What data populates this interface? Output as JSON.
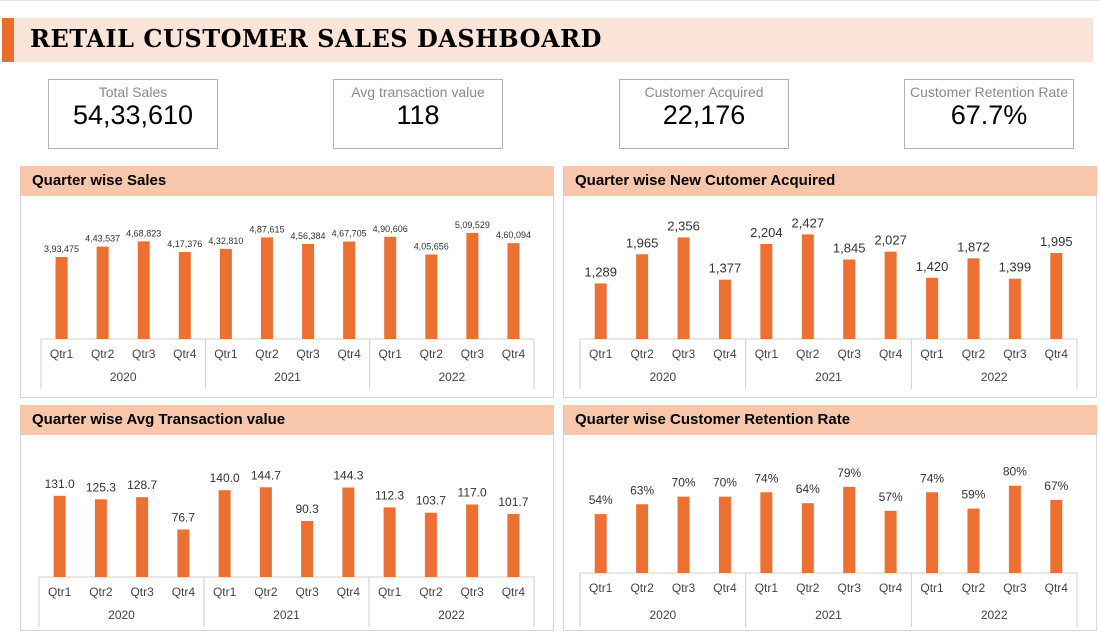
{
  "dashboard": {
    "title": "RETAIL CUSTOMER SALES DASHBOARD"
  },
  "kpis": [
    {
      "label": "Total Sales",
      "value": "54,33,610"
    },
    {
      "label": "Avg transaction value",
      "value": "118"
    },
    {
      "label": "Customer Acquired",
      "value": "22,176"
    },
    {
      "label": "Customer Retention Rate",
      "value": "67.7%"
    }
  ],
  "colors": {
    "bar": "#ed7033",
    "header_bg": "#fbe4d8",
    "panel_title_bg": "#f8c6aa",
    "accent": "#e86d2c"
  },
  "chart_data": [
    {
      "type": "bar",
      "title": "Quarter wise Sales",
      "categories": [
        "Qtr1",
        "Qtr2",
        "Qtr3",
        "Qtr4",
        "Qtr1",
        "Qtr2",
        "Qtr3",
        "Qtr4",
        "Qtr1",
        "Qtr2",
        "Qtr3",
        "Qtr4"
      ],
      "groups": [
        "2020",
        "2021",
        "2022"
      ],
      "values": [
        393475,
        443537,
        468823,
        417376,
        432810,
        487615,
        456384,
        467705,
        490606,
        405656,
        509529,
        460094
      ],
      "data_labels": [
        "3,93,475",
        "4,43,537",
        "4,68,823",
        "4,17,376",
        "4,32,810",
        "4,87,615",
        "4,56,384",
        "4,67,705",
        "4,90,606",
        "4,05,656",
        "5,09,529",
        "4,60,094"
      ],
      "ylim": [
        0,
        600000
      ]
    },
    {
      "type": "bar",
      "title": "Quarter wise New Cutomer Acquired",
      "categories": [
        "Qtr1",
        "Qtr2",
        "Qtr3",
        "Qtr4",
        "Qtr1",
        "Qtr2",
        "Qtr3",
        "Qtr4",
        "Qtr1",
        "Qtr2",
        "Qtr3",
        "Qtr4"
      ],
      "groups": [
        "2020",
        "2021",
        "2022"
      ],
      "values": [
        1289,
        1965,
        2356,
        1377,
        2204,
        2427,
        1845,
        2027,
        1420,
        1872,
        1399,
        1995
      ],
      "data_labels": [
        "1,289",
        "1,965",
        "2,356",
        "1,377",
        "2,204",
        "2,427",
        "1,845",
        "2,027",
        "1,420",
        "1,872",
        "1,399",
        "1,995"
      ],
      "ylim": [
        0,
        2900
      ]
    },
    {
      "type": "bar",
      "title": "Quarter wise Avg Transaction value",
      "categories": [
        "Qtr1",
        "Qtr2",
        "Qtr3",
        "Qtr4",
        "Qtr1",
        "Qtr2",
        "Qtr3",
        "Qtr4",
        "Qtr1",
        "Qtr2",
        "Qtr3",
        "Qtr4"
      ],
      "groups": [
        "2020",
        "2021",
        "2022"
      ],
      "values": [
        131.0,
        125.3,
        128.7,
        76.7,
        140.0,
        144.7,
        90.3,
        144.3,
        112.3,
        103.7,
        117.0,
        101.7
      ],
      "data_labels": [
        "131.0",
        "125.3",
        "128.7",
        "76.7",
        "140.0",
        "144.7",
        "90.3",
        "144.3",
        "112.3",
        "103.7",
        "117.0",
        "101.7"
      ],
      "ylim": [
        0,
        200
      ]
    },
    {
      "type": "bar",
      "title": "Quarter wise Customer Retention Rate",
      "categories": [
        "Qtr1",
        "Qtr2",
        "Qtr3",
        "Qtr4",
        "Qtr1",
        "Qtr2",
        "Qtr3",
        "Qtr4",
        "Qtr1",
        "Qtr2",
        "Qtr3",
        "Qtr4"
      ],
      "groups": [
        "2020",
        "2021",
        "2022"
      ],
      "values": [
        54,
        63,
        70,
        70,
        74,
        64,
        79,
        57,
        74,
        59,
        80,
        67
      ],
      "data_labels": [
        "54%",
        "63%",
        "70%",
        "70%",
        "74%",
        "64%",
        "79%",
        "57%",
        "74%",
        "59%",
        "80%",
        "67%"
      ],
      "ylim": [
        0,
        110
      ]
    }
  ]
}
